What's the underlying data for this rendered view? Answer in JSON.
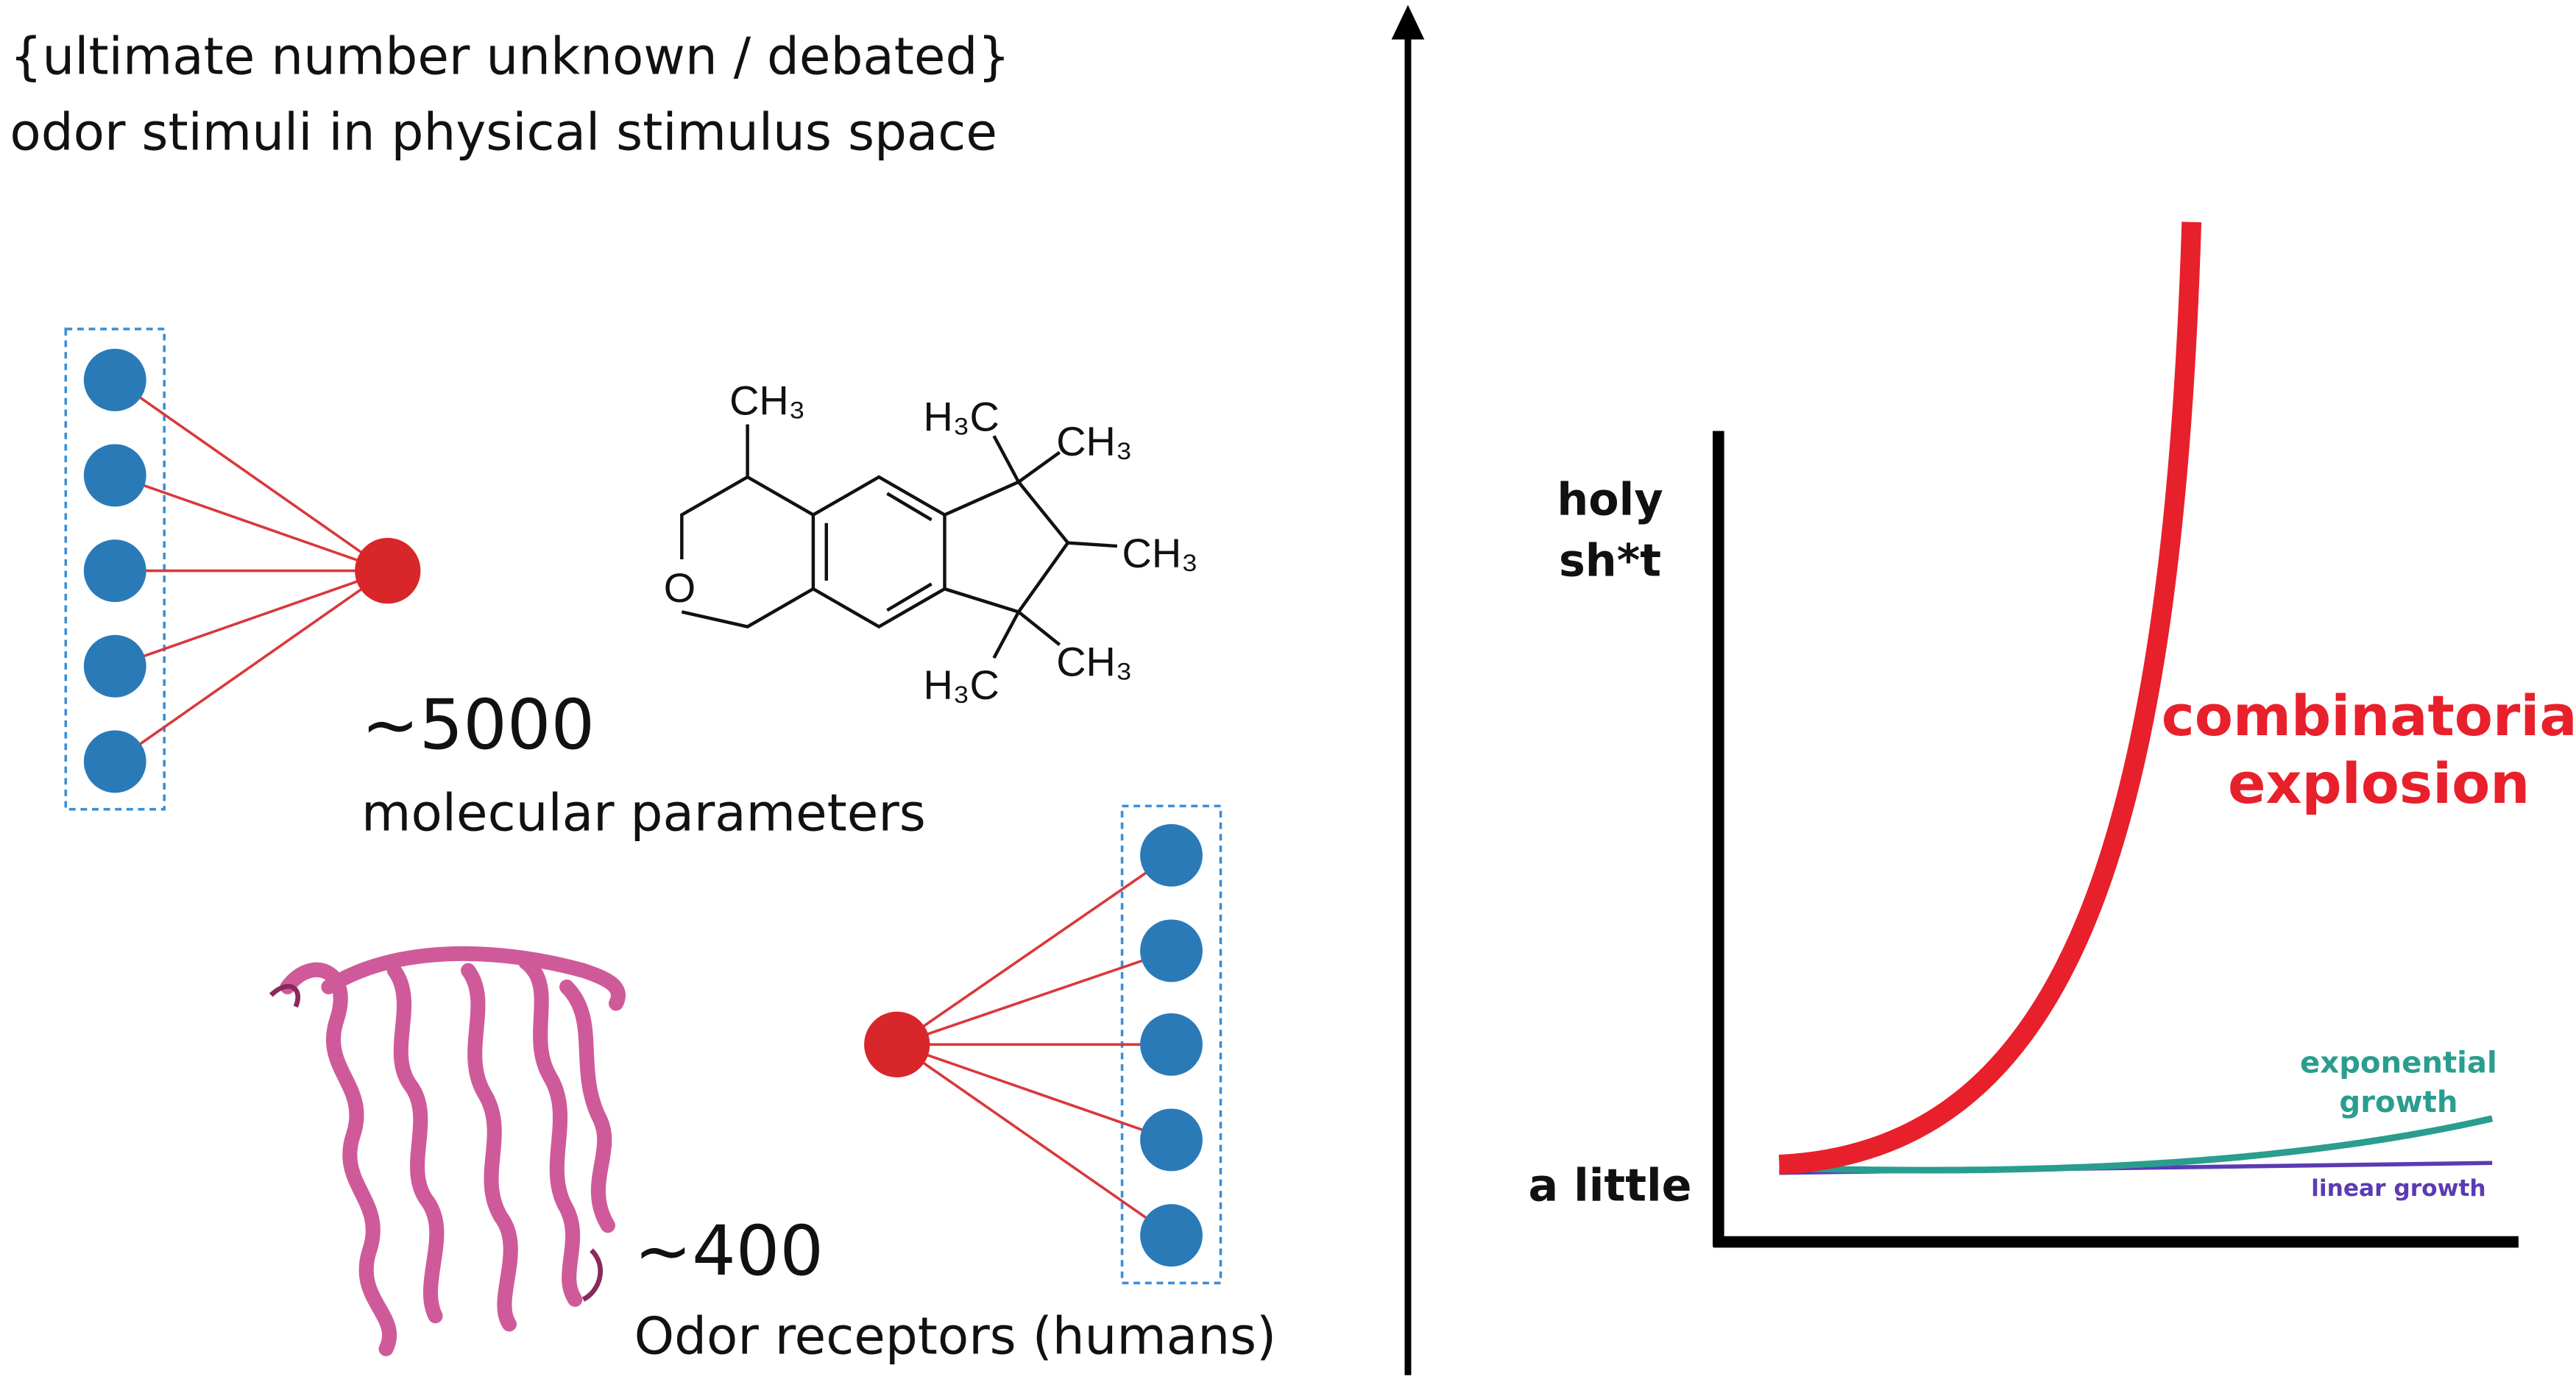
{
  "left": {
    "title_lines": [
      "{ultimate number unknown / debated}",
      "odor stimuli in physical stimulus space"
    ],
    "molecular": {
      "count": "~5000",
      "label": "molecular parameters"
    },
    "receptors": {
      "count": "~400",
      "label": "Odor receptors (humans)"
    },
    "molecule_labels": [
      "CH₃",
      "H₃C",
      "CH₃",
      "CH₃",
      "H₃C",
      "CH₃",
      "O"
    ]
  },
  "right": {
    "y_top_lines": [
      "holy",
      "sh*t"
    ],
    "y_bottom": "a little",
    "combinatorial_lines": [
      "combinatorial",
      "explosion"
    ],
    "exponential_lines": [
      "exponential",
      "growth"
    ],
    "linear": "linear growth"
  }
}
